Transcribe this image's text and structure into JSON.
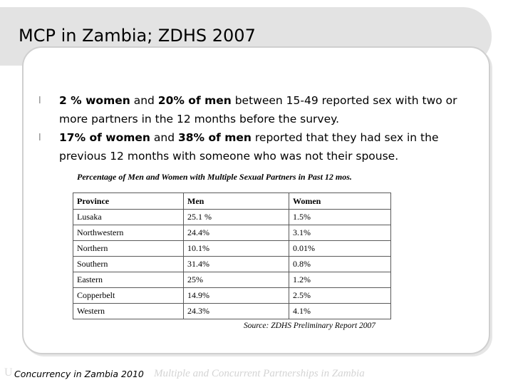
{
  "slide": {
    "title": "MCP in Zambia; ZDHS 2007",
    "bullets": [
      {
        "marker": "l",
        "bold1": "2 %  women",
        "text1": " and ",
        "bold2": "20% of men",
        "text2": " between 15-49 reported sex with two or more partners in the 12 months before the survey."
      },
      {
        "marker": "l",
        "bold1": " 17% of women",
        "text1": " and ",
        "bold2": "38% of men",
        "text2": " reported that they had sex in the previous 12 months with someone who was not their spouse."
      }
    ]
  },
  "table": {
    "caption": "Percentage of Men and Women with Multiple Sexual Partners in Past 12 mos.",
    "headers": [
      "Province",
      "Men",
      "Women"
    ],
    "rows": [
      [
        "Lusaka",
        "25.1 %",
        "1.5%"
      ],
      [
        "Northwestern",
        "24.4%",
        "3.1%"
      ],
      [
        "Northern",
        "10.1%",
        "0.01%"
      ],
      [
        "Southern",
        "31.4%",
        "0.8%"
      ],
      [
        "Eastern",
        "25%",
        "1.2%"
      ],
      [
        "Copperbelt",
        "14.9%",
        "2.5%"
      ],
      [
        "Western",
        "24.3%",
        "4.1%"
      ]
    ],
    "source": "Source: ZDHS Preliminary Report 2007"
  },
  "footer": {
    "ghost_letter": "U",
    "left": "Concurrency in Zambia 2010",
    "right": "Multiple and Concurrent Partnerships in Zambia"
  }
}
